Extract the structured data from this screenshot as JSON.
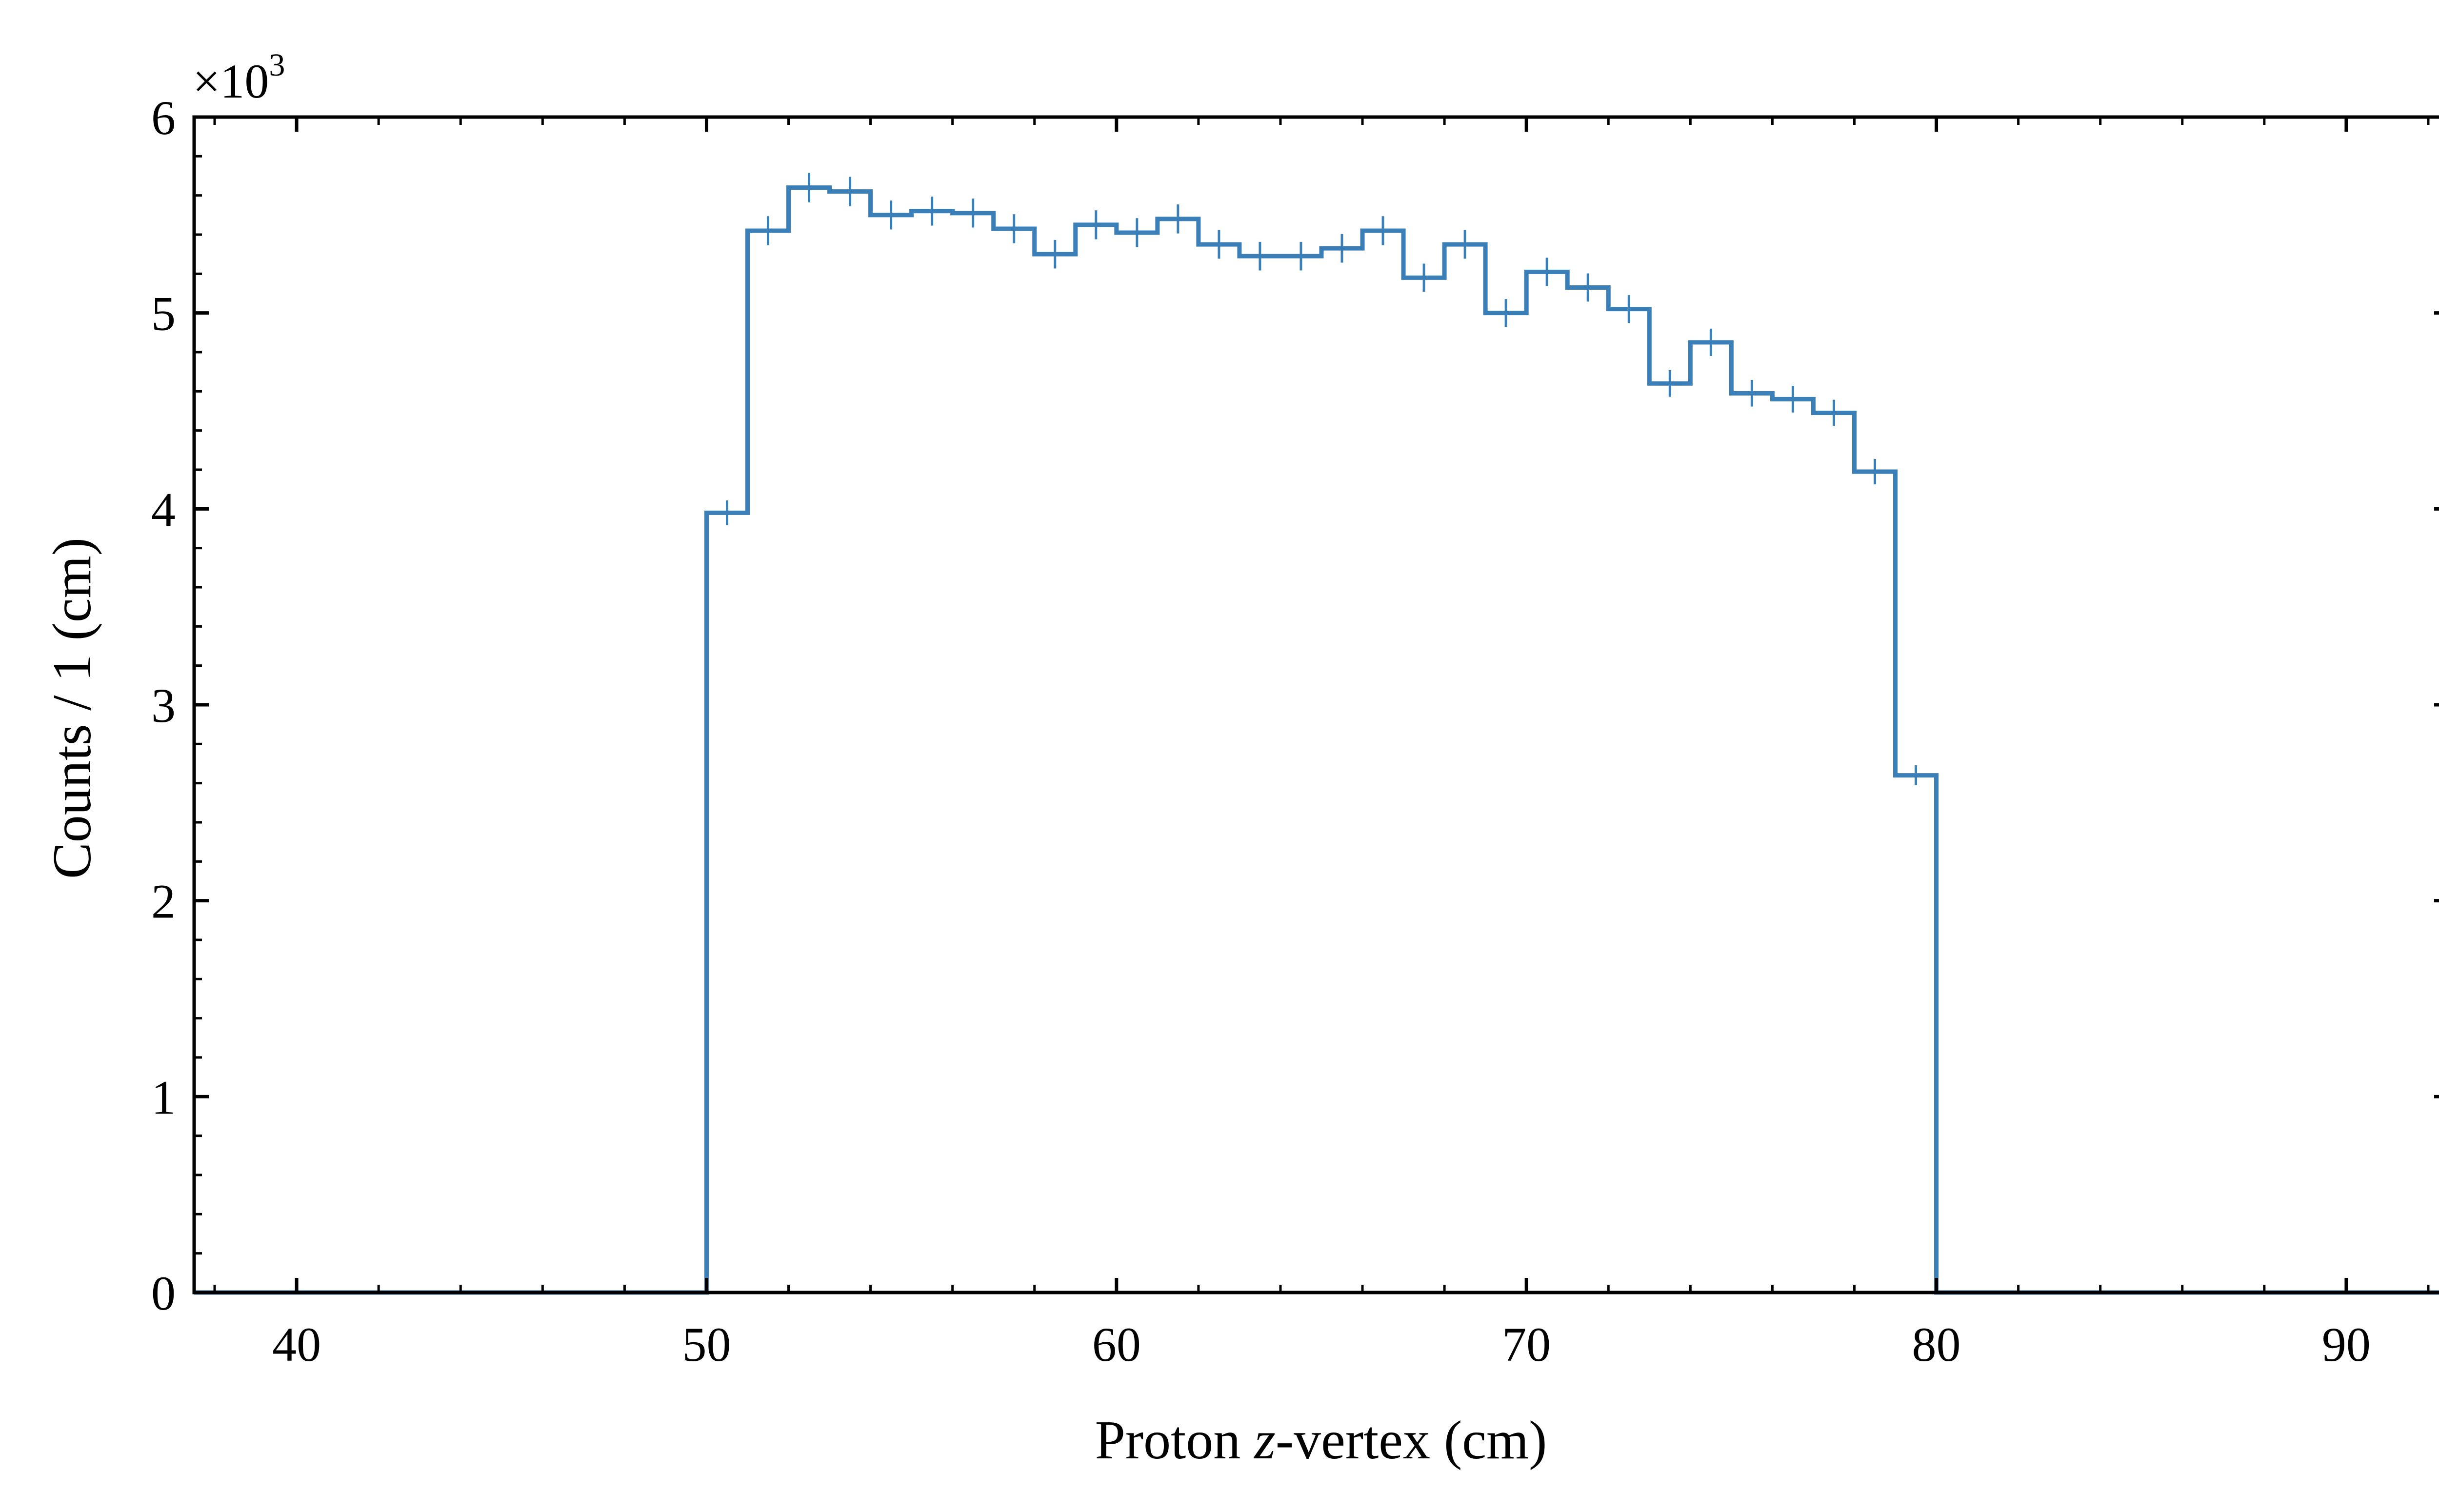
{
  "chart_data": {
    "type": "histogram",
    "xlabel_prefix": "Proton ",
    "xlabel_var": "z",
    "xlabel_suffix": "-vertex (cm)",
    "ylabel": "Counts / 1 (cm)",
    "y_multiplier_base": "×10",
    "y_multiplier_exp": "3",
    "xlim": [
      37.5,
      92.5
    ],
    "ylim": [
      0,
      6
    ],
    "x_major_ticks": [
      40,
      50,
      60,
      70,
      80,
      90
    ],
    "y_major_ticks": [
      0,
      1,
      2,
      3,
      4,
      5,
      6
    ],
    "color": "#3a7fb8",
    "bin_edges": [
      37.5,
      38,
      39,
      40,
      41,
      42,
      43,
      44,
      45,
      46,
      47,
      48,
      49,
      50,
      51,
      52,
      53,
      54,
      55,
      56,
      57,
      58,
      59,
      60,
      61,
      62,
      63,
      64,
      65,
      66,
      67,
      68,
      69,
      70,
      71,
      72,
      73,
      74,
      75,
      76,
      77,
      78,
      79,
      80,
      81,
      82,
      83,
      84,
      85,
      86,
      87,
      88,
      89,
      90,
      91,
      92,
      92.5
    ],
    "series": [
      {
        "x": [
          50.5,
          51.5,
          52.5,
          53.5,
          54.5,
          55.5,
          56.5,
          57.5,
          58.5,
          59.5,
          60.5,
          61.5,
          62.5,
          63.5,
          64.5,
          65.5,
          66.5,
          67.5,
          68.5,
          69.5,
          70.5,
          71.5,
          72.5,
          73.5,
          74.5,
          75.5,
          76.5,
          77.5,
          78.5,
          79.5
        ],
        "values": [
          3.98,
          5.42,
          5.64,
          5.62,
          5.5,
          5.52,
          5.51,
          5.43,
          5.3,
          5.45,
          5.41,
          5.48,
          5.35,
          5.29,
          5.29,
          5.33,
          5.42,
          5.18,
          5.35,
          5.0,
          5.21,
          5.13,
          5.02,
          4.64,
          4.85,
          4.59,
          4.56,
          4.49,
          4.19,
          2.64
        ],
        "errors": [
          0.063,
          0.074,
          0.075,
          0.075,
          0.074,
          0.074,
          0.074,
          0.074,
          0.073,
          0.074,
          0.074,
          0.074,
          0.073,
          0.073,
          0.073,
          0.073,
          0.074,
          0.072,
          0.073,
          0.071,
          0.072,
          0.072,
          0.071,
          0.068,
          0.07,
          0.068,
          0.068,
          0.067,
          0.065,
          0.051
        ]
      }
    ]
  }
}
